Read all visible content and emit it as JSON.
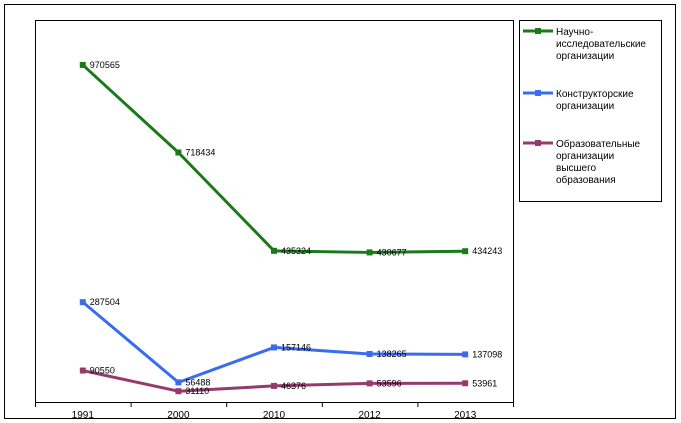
{
  "chart_data": {
    "type": "line",
    "categories": [
      "1991",
      "2000",
      "2010",
      "2012",
      "2013"
    ],
    "series": [
      {
        "name": "Научно-исследовательские организации",
        "legend_lines": [
          "Научно-",
          "исследовательские",
          "организации"
        ],
        "color": "#1a7a1a",
        "values": [
          970565,
          718434,
          435324,
          430677,
          434243
        ],
        "labels": [
          "970565",
          "718434",
          "435324",
          "430677",
          "434243"
        ]
      },
      {
        "name": "Конструкторские организации",
        "legend_lines": [
          "Конструкторские",
          "организации"
        ],
        "color": "#3a6cf0",
        "values": [
          287504,
          56488,
          157146,
          138265,
          137098
        ],
        "labels": [
          "287504",
          "56488",
          "157146",
          "138265",
          "137098"
        ]
      },
      {
        "name": "Образовательные организации высшего образования",
        "legend_lines": [
          "Образовательные",
          "организации",
          "высшего",
          "образования"
        ],
        "color": "#963a6e",
        "values": [
          90550,
          31110,
          46376,
          53596,
          53961
        ],
        "labels": [
          "90550",
          "31110",
          "46376",
          "53596",
          "53961"
        ]
      }
    ],
    "title": "",
    "xlabel": "",
    "ylabel": "",
    "ylim": [
      0,
      1100000
    ],
    "grid": false,
    "legend_position": "top-right"
  }
}
